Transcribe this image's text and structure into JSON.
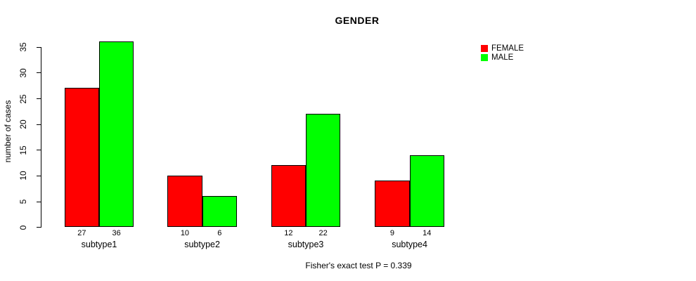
{
  "title": "GENDER",
  "footnote": "Fisher's exact test P = 0.339",
  "legend": {
    "position": "right",
    "entries": [
      {
        "label": "FEMALE",
        "color": "#ff0000"
      },
      {
        "label": "MALE",
        "color": "#00ff00"
      }
    ]
  },
  "colors": {
    "female": "#ff0000",
    "male": "#00ff00",
    "axis": "#000000",
    "background": "#ffffff"
  },
  "chart_data": {
    "type": "bar",
    "title": "GENDER",
    "xlabel": "",
    "ylabel": "number of cases",
    "categories": [
      "subtype1",
      "subtype2",
      "subtype3",
      "subtype4"
    ],
    "series": [
      {
        "name": "FEMALE",
        "color": "#ff0000",
        "values": [
          27,
          10,
          12,
          9
        ]
      },
      {
        "name": "MALE",
        "color": "#00ff00",
        "values": [
          36,
          6,
          22,
          14
        ]
      }
    ],
    "bar_value_labels": {
      "FEMALE": [
        27,
        10,
        12,
        9
      ],
      "MALE": [
        36,
        6,
        22,
        14
      ]
    },
    "ylim": [
      0,
      35
    ],
    "yticks": [
      0,
      5,
      10,
      15,
      20,
      25,
      30,
      35
    ],
    "grid": false,
    "legend_position": "right",
    "annotation": "Fisher's exact test P = 0.339"
  }
}
